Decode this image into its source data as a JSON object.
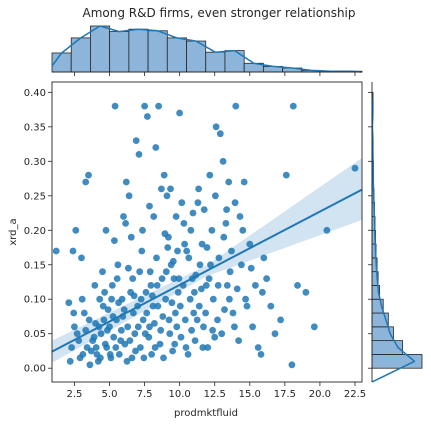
{
  "colors": {
    "primary": "#1f77b4",
    "hist_fill": "#8db5d9",
    "band": "#c7dcef",
    "axis": "#262626",
    "background": "#ffffff"
  },
  "chart_data": {
    "type": "scatter",
    "title": "Among R&D firms, even stronger relationship",
    "xlabel": "prodmktfluid",
    "ylabel": "xrd_a",
    "xlim": [
      0.9,
      23.0
    ],
    "ylim": [
      -0.02,
      0.415
    ],
    "x_ticks": [
      "2.5",
      "5.0",
      "7.5",
      "10.0",
      "12.5",
      "15.0",
      "17.5",
      "20.0",
      "22.5"
    ],
    "y_ticks": [
      "0.00",
      "0.05",
      "0.10",
      "0.15",
      "0.20",
      "0.25",
      "0.30",
      "0.35",
      "0.40"
    ],
    "grid": false,
    "regression": {
      "x": [
        0.9,
        23.0
      ],
      "y": [
        0.024,
        0.259
      ],
      "ci_lower_at_xmax": 0.215,
      "ci_upper_at_xmax": 0.305,
      "ci_lower_at_xmin": 0.008,
      "ci_upper_at_xmin": 0.04
    },
    "marginal_x_hist": {
      "bin_edges": [
        0.9,
        2.27,
        3.64,
        5.01,
        6.38,
        7.75,
        9.12,
        10.49,
        11.86,
        13.23,
        14.6,
        15.97,
        17.34,
        18.71,
        20.08,
        21.45,
        23.0
      ],
      "heights": [
        24,
        43,
        58,
        51,
        54,
        52,
        43,
        39,
        25,
        27,
        11,
        7,
        5,
        2,
        1,
        1
      ]
    },
    "marginal_y_hist": {
      "bin_edges": [
        0.0,
        0.02,
        0.04,
        0.06,
        0.08,
        0.1,
        0.12,
        0.14,
        0.16,
        0.18,
        0.2,
        0.22,
        0.24,
        0.26,
        0.28,
        0.3,
        0.32,
        0.34,
        0.36,
        0.38,
        0.4
      ],
      "heights": [
        98,
        60,
        42,
        32,
        22,
        15,
        12,
        10,
        8,
        7,
        6,
        5,
        4,
        3,
        3,
        2,
        2,
        1,
        2,
        2
      ]
    },
    "points": [
      [
        1.2,
        0.17
      ],
      [
        2.1,
        0.095
      ],
      [
        2.6,
        0.2
      ],
      [
        2.4,
        0.17
      ],
      [
        3.0,
        0.16
      ],
      [
        3.3,
        0.27
      ],
      [
        3.5,
        0.28
      ],
      [
        2.8,
        0.04
      ],
      [
        2.5,
        0.06
      ],
      [
        3.1,
        0.02
      ],
      [
        3.4,
        0.03
      ],
      [
        3.6,
        0.005
      ],
      [
        3.9,
        0.045
      ],
      [
        4.1,
        0.02
      ],
      [
        4.3,
        0.1
      ],
      [
        4.5,
        0.14
      ],
      [
        4.6,
        0.07
      ],
      [
        4.8,
        0.03
      ],
      [
        5.0,
        0.06
      ],
      [
        5.2,
        0.12
      ],
      [
        5.4,
        0.38
      ],
      [
        5.6,
        0.15
      ],
      [
        5.8,
        0.04
      ],
      [
        6.0,
        0.22
      ],
      [
        6.2,
        0.27
      ],
      [
        6.4,
        0.25
      ],
      [
        6.5,
        0.11
      ],
      [
        6.7,
        0.08
      ],
      [
        6.9,
        0.33
      ],
      [
        7.1,
        0.31
      ],
      [
        7.3,
        0.17
      ],
      [
        7.5,
        0.38
      ],
      [
        7.7,
        0.365
      ],
      [
        7.9,
        0.14
      ],
      [
        8.1,
        0.09
      ],
      [
        8.3,
        0.32
      ],
      [
        8.5,
        0.38
      ],
      [
        8.7,
        0.26
      ],
      [
        8.9,
        0.28
      ],
      [
        9.1,
        0.25
      ],
      [
        9.2,
        0.19
      ],
      [
        9.4,
        0.15
      ],
      [
        9.6,
        0.13
      ],
      [
        9.8,
        0.06
      ],
      [
        10.0,
        0.37
      ],
      [
        10.3,
        0.21
      ],
      [
        10.5,
        0.17
      ],
      [
        10.8,
        0.2
      ],
      [
        11.0,
        0.08
      ],
      [
        11.3,
        0.24
      ],
      [
        11.6,
        0.18
      ],
      [
        11.9,
        0.12
      ],
      [
        12.1,
        0.13
      ],
      [
        12.3,
        0.2
      ],
      [
        12.6,
        0.35
      ],
      [
        12.9,
        0.34
      ],
      [
        13.1,
        0.3
      ],
      [
        13.3,
        0.21
      ],
      [
        13.5,
        0.27
      ],
      [
        13.7,
        0.17
      ],
      [
        14.0,
        0.38
      ],
      [
        14.3,
        0.22
      ],
      [
        14.6,
        0.27
      ],
      [
        14.8,
        0.09
      ],
      [
        15.2,
        0.06
      ],
      [
        15.6,
        0.03
      ],
      [
        16.0,
        0.16
      ],
      [
        17.6,
        0.28
      ],
      [
        18.0,
        0.005
      ],
      [
        18.1,
        0.38
      ],
      [
        19.6,
        0.06
      ],
      [
        20.5,
        0.2
      ],
      [
        22.5,
        0.29
      ],
      [
        2.2,
        0.01
      ],
      [
        2.7,
        0.05
      ],
      [
        3.2,
        0.08
      ],
      [
        3.7,
        0.025
      ],
      [
        4.0,
        0.065
      ],
      [
        4.2,
        0.01
      ],
      [
        4.4,
        0.05
      ],
      [
        4.7,
        0.035
      ],
      [
        4.9,
        0.085
      ],
      [
        5.1,
        0.015
      ],
      [
        5.3,
        0.045
      ],
      [
        5.5,
        0.07
      ],
      [
        5.7,
        0.02
      ],
      [
        5.9,
        0.1
      ],
      [
        6.1,
        0.035
      ],
      [
        6.3,
        0.06
      ],
      [
        6.6,
        0.015
      ],
      [
        6.8,
        0.05
      ],
      [
        7.0,
        0.09
      ],
      [
        7.2,
        0.03
      ],
      [
        7.4,
        0.07
      ],
      [
        7.6,
        0.11
      ],
      [
        7.8,
        0.045
      ],
      [
        8.0,
        0.02
      ],
      [
        8.2,
        0.065
      ],
      [
        8.4,
        0.12
      ],
      [
        8.6,
        0.035
      ],
      [
        8.8,
        0.075
      ],
      [
        9.0,
        0.1
      ],
      [
        9.3,
        0.05
      ],
      [
        9.5,
        0.025
      ],
      [
        9.7,
        0.08
      ],
      [
        9.9,
        0.11
      ],
      [
        10.1,
        0.045
      ],
      [
        10.4,
        0.07
      ],
      [
        10.6,
        0.02
      ],
      [
        10.9,
        0.13
      ],
      [
        11.1,
        0.04
      ],
      [
        11.4,
        0.09
      ],
      [
        11.7,
        0.06
      ],
      [
        12.0,
        0.03
      ],
      [
        12.4,
        0.1
      ],
      [
        12.7,
        0.07
      ],
      [
        13.0,
        0.05
      ],
      [
        13.4,
        0.12
      ],
      [
        13.8,
        0.08
      ],
      [
        14.2,
        0.04
      ],
      [
        14.7,
        0.1
      ],
      [
        15.4,
        0.12
      ],
      [
        15.8,
        0.02
      ],
      [
        16.5,
        0.09
      ],
      [
        2.3,
        0.03
      ],
      [
        2.9,
        0.015
      ],
      [
        3.3,
        0.055
      ],
      [
        3.8,
        0.04
      ],
      [
        4.05,
        0.03
      ],
      [
        4.35,
        0.015
      ],
      [
        4.55,
        0.09
      ],
      [
        4.85,
        0.055
      ],
      [
        5.05,
        0.02
      ],
      [
        5.25,
        0.075
      ],
      [
        5.45,
        0.03
      ],
      [
        5.65,
        0.095
      ],
      [
        5.85,
        0.055
      ],
      [
        6.05,
        0.085
      ],
      [
        6.25,
        0.01
      ],
      [
        6.45,
        0.04
      ],
      [
        6.65,
        0.13
      ],
      [
        6.85,
        0.025
      ],
      [
        7.05,
        0.06
      ],
      [
        7.25,
        0.1
      ],
      [
        7.45,
        0.015
      ],
      [
        7.65,
        0.08
      ],
      [
        7.85,
        0.06
      ],
      [
        8.05,
        0.105
      ],
      [
        8.25,
        0.03
      ],
      [
        8.45,
        0.09
      ],
      [
        8.65,
        0.055
      ],
      [
        8.85,
        0.015
      ],
      [
        9.05,
        0.14
      ],
      [
        9.25,
        0.07
      ],
      [
        9.45,
        0.095
      ],
      [
        9.65,
        0.035
      ],
      [
        9.85,
        0.17
      ],
      [
        10.05,
        0.09
      ],
      [
        10.25,
        0.12
      ],
      [
        10.45,
        0.03
      ],
      [
        10.65,
        0.16
      ],
      [
        10.85,
        0.055
      ],
      [
        11.05,
        0.11
      ],
      [
        11.25,
        0.07
      ],
      [
        11.45,
        0.15
      ],
      [
        11.65,
        0.03
      ],
      [
        11.85,
        0.08
      ],
      [
        12.2,
        0.15
      ],
      [
        12.5,
        0.045
      ],
      [
        12.8,
        0.16
      ],
      [
        13.2,
        0.085
      ],
      [
        13.6,
        0.14
      ],
      [
        13.9,
        0.06
      ],
      [
        14.4,
        0.15
      ],
      [
        15.0,
        0.18
      ],
      [
        15.9,
        0.11
      ],
      [
        17.2,
        0.07
      ],
      [
        18.4,
        0.12
      ],
      [
        2.45,
        0.08
      ],
      [
        3.05,
        0.1
      ],
      [
        3.55,
        0.07
      ],
      [
        3.95,
        0.12
      ],
      [
        4.25,
        0.06
      ],
      [
        4.65,
        0.11
      ],
      [
        5.15,
        0.1
      ],
      [
        5.55,
        0.13
      ],
      [
        5.95,
        0.075
      ],
      [
        6.35,
        0.145
      ],
      [
        6.75,
        0.105
      ],
      [
        7.15,
        0.14
      ],
      [
        7.55,
        0.05
      ],
      [
        7.95,
        0.12
      ],
      [
        8.35,
        0.16
      ],
      [
        8.75,
        0.13
      ],
      [
        9.15,
        0.175
      ],
      [
        9.55,
        0.155
      ],
      [
        9.95,
        0.13
      ],
      [
        10.35,
        0.18
      ],
      [
        10.75,
        0.1
      ],
      [
        11.15,
        0.135
      ],
      [
        11.55,
        0.115
      ],
      [
        11.95,
        0.175
      ],
      [
        12.35,
        0.055
      ],
      [
        12.75,
        0.12
      ],
      [
        13.15,
        0.19
      ],
      [
        13.55,
        0.1
      ],
      [
        14.1,
        0.115
      ],
      [
        14.5,
        0.2
      ],
      [
        15.1,
        0.145
      ],
      [
        16.2,
        0.13
      ],
      [
        16.8,
        0.05
      ],
      [
        19.0,
        0.11
      ],
      [
        6.55,
        0.19
      ],
      [
        7.35,
        0.2
      ],
      [
        8.15,
        0.22
      ],
      [
        8.95,
        0.195
      ],
      [
        9.75,
        0.22
      ],
      [
        10.15,
        0.24
      ],
      [
        10.95,
        0.225
      ],
      [
        11.75,
        0.23
      ],
      [
        12.55,
        0.25
      ],
      [
        13.35,
        0.23
      ],
      [
        6.15,
        0.21
      ],
      [
        5.35,
        0.185
      ],
      [
        4.75,
        0.2
      ],
      [
        7.85,
        0.235
      ],
      [
        9.35,
        0.26
      ],
      [
        11.35,
        0.26
      ],
      [
        12.15,
        0.28
      ],
      [
        13.95,
        0.24
      ]
    ]
  }
}
